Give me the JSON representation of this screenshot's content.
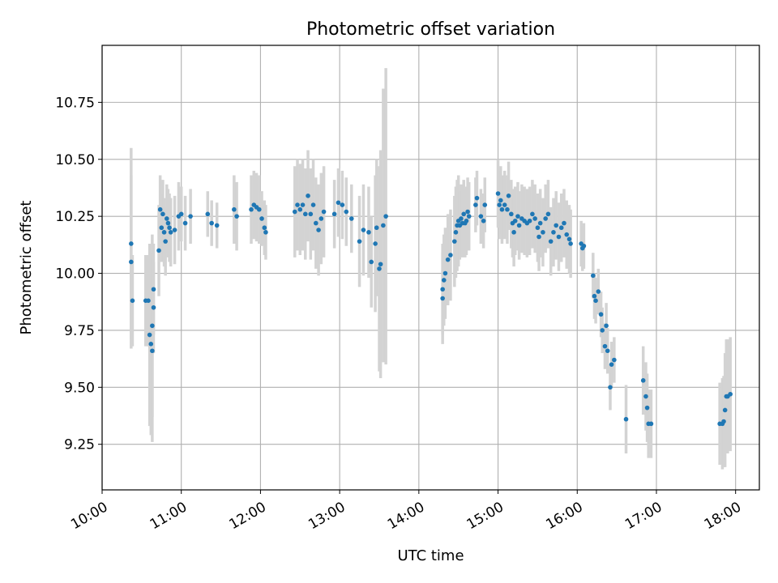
{
  "chart_data": {
    "type": "scatter",
    "title": "Photometric offset variation",
    "xlabel": "UTC time",
    "ylabel": "Photometric offset",
    "x_tick_labels": [
      "10:00",
      "11:00",
      "12:00",
      "13:00",
      "14:00",
      "15:00",
      "16:00",
      "17:00",
      "18:00"
    ],
    "y_tick_labels": [
      "9.25",
      "9.50",
      "9.75",
      "10.00",
      "10.25",
      "10.50",
      "10.75"
    ],
    "xlim": [
      "10:00",
      "18:18"
    ],
    "ylim": [
      9.05,
      11.0
    ],
    "grid": true,
    "colors": {
      "points": "#1f77b4",
      "error_bars": "#d3d3d3",
      "grid": "#b0b0b0"
    },
    "series": [
      {
        "points": [
          {
            "x": "10:22",
            "y": 10.13,
            "err": 0.42
          },
          {
            "x": "10:22",
            "y": 10.05,
            "err": 0.38
          },
          {
            "x": "10:23",
            "y": 9.88,
            "err": 0.2
          },
          {
            "x": "10:33",
            "y": 9.88,
            "err": 0.2
          },
          {
            "x": "10:35",
            "y": 9.88,
            "err": 0.2
          },
          {
            "x": "10:36",
            "y": 9.73,
            "err": 0.4
          },
          {
            "x": "10:37",
            "y": 9.69,
            "err": 0.4
          },
          {
            "x": "10:38",
            "y": 9.66,
            "err": 0.4
          },
          {
            "x": "10:38",
            "y": 9.77,
            "err": 0.4
          },
          {
            "x": "10:39",
            "y": 9.85,
            "err": 0.2
          },
          {
            "x": "10:39",
            "y": 9.93,
            "err": 0.2
          },
          {
            "x": "10:43",
            "y": 10.1,
            "err": 0.2
          },
          {
            "x": "10:44",
            "y": 10.28,
            "err": 0.15
          },
          {
            "x": "10:45",
            "y": 10.2,
            "err": 0.15
          },
          {
            "x": "10:46",
            "y": 10.26,
            "err": 0.15
          },
          {
            "x": "10:47",
            "y": 10.18,
            "err": 0.15
          },
          {
            "x": "10:48",
            "y": 10.14,
            "err": 0.15
          },
          {
            "x": "10:49",
            "y": 10.24,
            "err": 0.15
          },
          {
            "x": "10:50",
            "y": 10.22,
            "err": 0.15
          },
          {
            "x": "10:51",
            "y": 10.2,
            "err": 0.15
          },
          {
            "x": "10:52",
            "y": 10.18,
            "err": 0.15
          },
          {
            "x": "10:55",
            "y": 10.19,
            "err": 0.15
          },
          {
            "x": "10:58",
            "y": 10.25,
            "err": 0.15
          },
          {
            "x": "11:00",
            "y": 10.26,
            "err": 0.12
          },
          {
            "x": "11:03",
            "y": 10.22,
            "err": 0.12
          },
          {
            "x": "11:07",
            "y": 10.25,
            "err": 0.12
          },
          {
            "x": "11:20",
            "y": 10.26,
            "err": 0.1
          },
          {
            "x": "11:23",
            "y": 10.22,
            "err": 0.1
          },
          {
            "x": "11:27",
            "y": 10.21,
            "err": 0.1
          },
          {
            "x": "11:40",
            "y": 10.28,
            "err": 0.15
          },
          {
            "x": "11:42",
            "y": 10.25,
            "err": 0.15
          },
          {
            "x": "11:53",
            "y": 10.28,
            "err": 0.15
          },
          {
            "x": "11:55",
            "y": 10.3,
            "err": 0.15
          },
          {
            "x": "11:57",
            "y": 10.29,
            "err": 0.15
          },
          {
            "x": "11:59",
            "y": 10.28,
            "err": 0.15
          },
          {
            "x": "12:01",
            "y": 10.24,
            "err": 0.12
          },
          {
            "x": "12:03",
            "y": 10.2,
            "err": 0.12
          },
          {
            "x": "12:04",
            "y": 10.18,
            "err": 0.12
          },
          {
            "x": "12:26",
            "y": 10.27,
            "err": 0.2
          },
          {
            "x": "12:28",
            "y": 10.3,
            "err": 0.2
          },
          {
            "x": "12:30",
            "y": 10.28,
            "err": 0.2
          },
          {
            "x": "12:32",
            "y": 10.3,
            "err": 0.2
          },
          {
            "x": "12:34",
            "y": 10.26,
            "err": 0.2
          },
          {
            "x": "12:36",
            "y": 10.34,
            "err": 0.2
          },
          {
            "x": "12:38",
            "y": 10.26,
            "err": 0.2
          },
          {
            "x": "12:40",
            "y": 10.3,
            "err": 0.2
          },
          {
            "x": "12:42",
            "y": 10.22,
            "err": 0.2
          },
          {
            "x": "12:44",
            "y": 10.19,
            "err": 0.2
          },
          {
            "x": "12:46",
            "y": 10.24,
            "err": 0.2
          },
          {
            "x": "12:48",
            "y": 10.27,
            "err": 0.2
          },
          {
            "x": "12:56",
            "y": 10.26,
            "err": 0.15
          },
          {
            "x": "12:59",
            "y": 10.31,
            "err": 0.15
          },
          {
            "x": "13:02",
            "y": 10.3,
            "err": 0.15
          },
          {
            "x": "13:05",
            "y": 10.27,
            "err": 0.15
          },
          {
            "x": "13:09",
            "y": 10.24,
            "err": 0.15
          },
          {
            "x": "13:15",
            "y": 10.14,
            "err": 0.2
          },
          {
            "x": "13:18",
            "y": 10.19,
            "err": 0.2
          },
          {
            "x": "13:22",
            "y": 10.18,
            "err": 0.2
          },
          {
            "x": "13:24",
            "y": 10.05,
            "err": 0.2
          },
          {
            "x": "13:27",
            "y": 10.13,
            "err": 0.3
          },
          {
            "x": "13:28",
            "y": 10.2,
            "err": 0.3
          },
          {
            "x": "13:30",
            "y": 10.02,
            "err": 0.45
          },
          {
            "x": "13:31",
            "y": 10.04,
            "err": 0.5
          },
          {
            "x": "13:33",
            "y": 10.21,
            "err": 0.6
          },
          {
            "x": "13:35",
            "y": 10.25,
            "err": 0.65
          },
          {
            "x": "14:18",
            "y": 9.89,
            "err": 0.2
          },
          {
            "x": "14:18",
            "y": 9.93,
            "err": 0.2
          },
          {
            "x": "14:19",
            "y": 9.97,
            "err": 0.2
          },
          {
            "x": "14:20",
            "y": 10.0,
            "err": 0.2
          },
          {
            "x": "14:22",
            "y": 10.06,
            "err": 0.2
          },
          {
            "x": "14:24",
            "y": 10.08,
            "err": 0.2
          },
          {
            "x": "14:27",
            "y": 10.14,
            "err": 0.2
          },
          {
            "x": "14:28",
            "y": 10.18,
            "err": 0.2
          },
          {
            "x": "14:29",
            "y": 10.21,
            "err": 0.2
          },
          {
            "x": "14:30",
            "y": 10.23,
            "err": 0.2
          },
          {
            "x": "14:31",
            "y": 10.21,
            "err": 0.15
          },
          {
            "x": "14:32",
            "y": 10.24,
            "err": 0.15
          },
          {
            "x": "14:33",
            "y": 10.22,
            "err": 0.15
          },
          {
            "x": "14:34",
            "y": 10.26,
            "err": 0.15
          },
          {
            "x": "14:35",
            "y": 10.22,
            "err": 0.15
          },
          {
            "x": "14:36",
            "y": 10.23,
            "err": 0.15
          },
          {
            "x": "14:37",
            "y": 10.27,
            "err": 0.15
          },
          {
            "x": "14:38",
            "y": 10.25,
            "err": 0.15
          },
          {
            "x": "14:43",
            "y": 10.3,
            "err": 0.12
          },
          {
            "x": "14:44",
            "y": 10.33,
            "err": 0.12
          },
          {
            "x": "14:47",
            "y": 10.25,
            "err": 0.12
          },
          {
            "x": "14:49",
            "y": 10.23,
            "err": 0.12
          },
          {
            "x": "14:50",
            "y": 10.3,
            "err": 0.12
          },
          {
            "x": "15:00",
            "y": 10.35,
            "err": 0.15
          },
          {
            "x": "15:01",
            "y": 10.3,
            "err": 0.15
          },
          {
            "x": "15:02",
            "y": 10.32,
            "err": 0.15
          },
          {
            "x": "15:03",
            "y": 10.28,
            "err": 0.15
          },
          {
            "x": "15:05",
            "y": 10.3,
            "err": 0.15
          },
          {
            "x": "15:07",
            "y": 10.28,
            "err": 0.15
          },
          {
            "x": "15:08",
            "y": 10.34,
            "err": 0.15
          },
          {
            "x": "15:10",
            "y": 10.26,
            "err": 0.15
          },
          {
            "x": "15:11",
            "y": 10.22,
            "err": 0.15
          },
          {
            "x": "15:12",
            "y": 10.18,
            "err": 0.15
          },
          {
            "x": "15:13",
            "y": 10.23,
            "err": 0.15
          },
          {
            "x": "15:15",
            "y": 10.25,
            "err": 0.15
          },
          {
            "x": "15:16",
            "y": 10.21,
            "err": 0.15
          },
          {
            "x": "15:18",
            "y": 10.24,
            "err": 0.15
          },
          {
            "x": "15:20",
            "y": 10.23,
            "err": 0.15
          },
          {
            "x": "15:22",
            "y": 10.22,
            "err": 0.15
          },
          {
            "x": "15:24",
            "y": 10.23,
            "err": 0.15
          },
          {
            "x": "15:26",
            "y": 10.26,
            "err": 0.15
          },
          {
            "x": "15:28",
            "y": 10.24,
            "err": 0.15
          },
          {
            "x": "15:30",
            "y": 10.2,
            "err": 0.15
          },
          {
            "x": "15:31",
            "y": 10.16,
            "err": 0.15
          },
          {
            "x": "15:32",
            "y": 10.22,
            "err": 0.15
          },
          {
            "x": "15:34",
            "y": 10.18,
            "err": 0.15
          },
          {
            "x": "15:36",
            "y": 10.24,
            "err": 0.15
          },
          {
            "x": "15:38",
            "y": 10.26,
            "err": 0.15
          },
          {
            "x": "15:40",
            "y": 10.14,
            "err": 0.15
          },
          {
            "x": "15:42",
            "y": 10.18,
            "err": 0.15
          },
          {
            "x": "15:44",
            "y": 10.21,
            "err": 0.15
          },
          {
            "x": "15:46",
            "y": 10.16,
            "err": 0.15
          },
          {
            "x": "15:48",
            "y": 10.2,
            "err": 0.15
          },
          {
            "x": "15:50",
            "y": 10.22,
            "err": 0.15
          },
          {
            "x": "15:52",
            "y": 10.17,
            "err": 0.15
          },
          {
            "x": "15:54",
            "y": 10.15,
            "err": 0.15
          },
          {
            "x": "15:55",
            "y": 10.13,
            "err": 0.15
          },
          {
            "x": "16:03",
            "y": 10.13,
            "err": 0.1
          },
          {
            "x": "16:04",
            "y": 10.11,
            "err": 0.1
          },
          {
            "x": "16:05",
            "y": 10.12,
            "err": 0.1
          },
          {
            "x": "16:12",
            "y": 9.99,
            "err": 0.1
          },
          {
            "x": "16:13",
            "y": 9.9,
            "err": 0.1
          },
          {
            "x": "16:14",
            "y": 9.88,
            "err": 0.1
          },
          {
            "x": "16:16",
            "y": 9.92,
            "err": 0.1
          },
          {
            "x": "16:18",
            "y": 9.82,
            "err": 0.1
          },
          {
            "x": "16:19",
            "y": 9.75,
            "err": 0.1
          },
          {
            "x": "16:21",
            "y": 9.68,
            "err": 0.1
          },
          {
            "x": "16:22",
            "y": 9.77,
            "err": 0.1
          },
          {
            "x": "16:23",
            "y": 9.66,
            "err": 0.1
          },
          {
            "x": "16:25",
            "y": 9.5,
            "err": 0.1
          },
          {
            "x": "16:26",
            "y": 9.6,
            "err": 0.1
          },
          {
            "x": "16:28",
            "y": 9.62,
            "err": 0.1
          },
          {
            "x": "16:37",
            "y": 9.36,
            "err": 0.15
          },
          {
            "x": "16:50",
            "y": 9.53,
            "err": 0.15
          },
          {
            "x": "16:52",
            "y": 9.46,
            "err": 0.15
          },
          {
            "x": "16:53",
            "y": 9.41,
            "err": 0.15
          },
          {
            "x": "16:54",
            "y": 9.34,
            "err": 0.15
          },
          {
            "x": "16:56",
            "y": 9.34,
            "err": 0.15
          },
          {
            "x": "17:48",
            "y": 9.34,
            "err": 0.18
          },
          {
            "x": "17:50",
            "y": 9.34,
            "err": 0.2
          },
          {
            "x": "17:51",
            "y": 9.35,
            "err": 0.2
          },
          {
            "x": "17:52",
            "y": 9.4,
            "err": 0.25
          },
          {
            "x": "17:53",
            "y": 9.46,
            "err": 0.25
          },
          {
            "x": "17:54",
            "y": 9.46,
            "err": 0.25
          },
          {
            "x": "17:56",
            "y": 9.47,
            "err": 0.25
          }
        ]
      }
    ]
  }
}
